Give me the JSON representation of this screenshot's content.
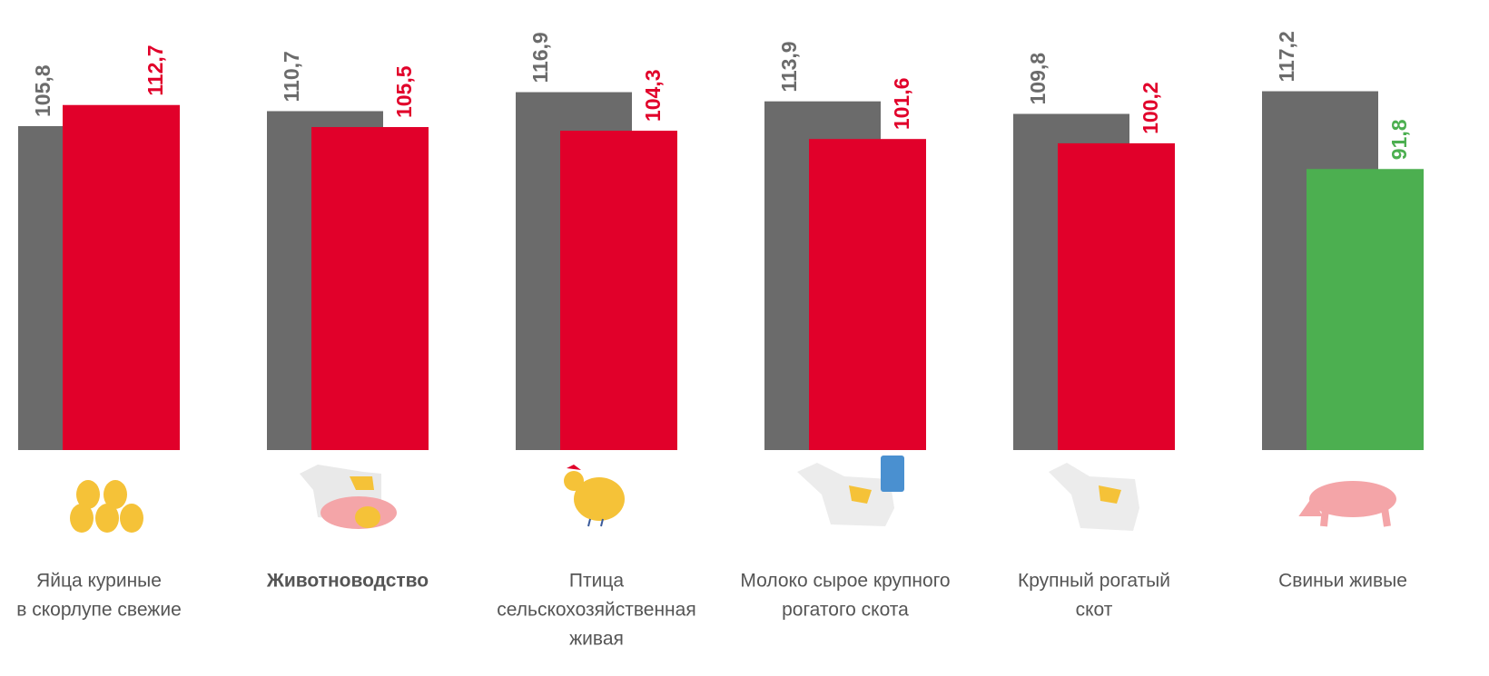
{
  "chart_data": {
    "type": "bar",
    "categories": [
      [
        "Яйца куриные",
        "в скорлупе свежие"
      ],
      [
        "Животноводство"
      ],
      [
        "Птица",
        "сельскохозяйственная",
        "живая"
      ],
      [
        "Молоко сырое крупного",
        "рогатого скота"
      ],
      [
        "Крупный рогатый",
        "скот"
      ],
      [
        "Свиньи живые"
      ]
    ],
    "series": [
      {
        "color": "#6b6b6b",
        "values": [
          105.8,
          110.7,
          116.9,
          113.9,
          109.8,
          117.2
        ],
        "value_labels": [
          "105,8",
          "110,7",
          "116,9",
          "113,9",
          "109,8",
          "117,2"
        ]
      },
      {
        "colors": [
          "#e1002a",
          "#e1002a",
          "#e1002a",
          "#e1002a",
          "#e1002a",
          "#4caf50"
        ],
        "values": [
          112.7,
          105.5,
          104.3,
          101.6,
          100.2,
          91.8
        ],
        "value_labels": [
          "112,7",
          "105,5",
          "104,3",
          "101,6",
          "100,2",
          "91,8"
        ]
      }
    ],
    "ylim": [
      0,
      147
    ]
  }
}
